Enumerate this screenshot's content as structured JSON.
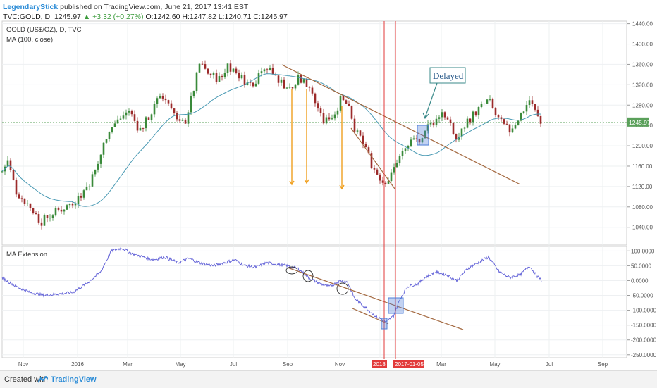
{
  "header": {
    "author": "LegendaryStick",
    "published": "published on TradingView.com, June 21, 2017 13:41 EST",
    "symbol": "TVC:GOLD, D",
    "last": "1245.97",
    "change": "▲ +3.32 (+0.27%)",
    "ohlc": "O:1242.60 H:1247.82 L:1240.71 C:1245.97"
  },
  "colors": {
    "candle_up": "#3a8a3a",
    "candle_down": "#9c2b2b",
    "ma_line": "#4a9ab4",
    "ext_line": "#5b5bd6",
    "trendline": "#a3683f",
    "arrow": "#f0a020",
    "vline": "#e23a3a",
    "box": "#4f7fd9",
    "callout": "#3a8a8a",
    "price_tag": "#5aa05a"
  },
  "footer": {
    "created_with": "Created with",
    "brand": "TradingView"
  },
  "chart_data": [
    {
      "type": "candlestick",
      "title": "GOLD (US$/OZ), D, TVC",
      "indicator": "MA (100, close)",
      "ylim": [
        1005,
        1445
      ],
      "yticks": [
        "1440.00",
        "1400.00",
        "1360.00",
        "1320.00",
        "1280.00",
        "1240.00",
        "1200.00",
        "1160.00",
        "1120.00",
        "1080.00",
        "1040.00"
      ],
      "last_price_label": "1245.97",
      "annotation": "Delayed",
      "price_anchors": [
        [
          0,
          1150
        ],
        [
          8,
          1170
        ],
        [
          20,
          1110
        ],
        [
          40,
          1080
        ],
        [
          55,
          1050
        ],
        [
          75,
          1070
        ],
        [
          90,
          1080
        ],
        [
          110,
          1100
        ],
        [
          125,
          1130
        ],
        [
          135,
          1160
        ],
        [
          150,
          1230
        ],
        [
          165,
          1250
        ],
        [
          180,
          1270
        ],
        [
          195,
          1230
        ],
        [
          210,
          1260
        ],
        [
          225,
          1300
        ],
        [
          240,
          1280
        ],
        [
          250,
          1240
        ],
        [
          260,
          1250
        ],
        [
          270,
          1300
        ],
        [
          280,
          1360
        ],
        [
          295,
          1340
        ],
        [
          310,
          1330
        ],
        [
          320,
          1360
        ],
        [
          335,
          1340
        ],
        [
          350,
          1320
        ],
        [
          360,
          1330
        ],
        [
          370,
          1360
        ],
        [
          385,
          1340
        ],
        [
          400,
          1320
        ],
        [
          410,
          1310
        ],
        [
          420,
          1330
        ],
        [
          435,
          1320
        ],
        [
          445,
          1290
        ],
        [
          455,
          1250
        ],
        [
          470,
          1260
        ],
        [
          480,
          1290
        ],
        [
          490,
          1280
        ],
        [
          500,
          1230
        ],
        [
          515,
          1200
        ],
        [
          525,
          1160
        ],
        [
          540,
          1130
        ],
        [
          550,
          1135
        ],
        [
          560,
          1170
        ],
        [
          575,
          1200
        ],
        [
          590,
          1210
        ],
        [
          605,
          1240
        ],
        [
          615,
          1250
        ],
        [
          625,
          1270
        ],
        [
          635,
          1240
        ],
        [
          645,
          1210
        ],
        [
          660,
          1250
        ],
        [
          675,
          1270
        ],
        [
          690,
          1290
        ],
        [
          700,
          1260
        ],
        [
          710,
          1240
        ],
        [
          720,
          1230
        ],
        [
          735,
          1260
        ],
        [
          748,
          1290
        ],
        [
          755,
          1270
        ],
        [
          765,
          1246
        ]
      ]
    },
    {
      "type": "line",
      "title": "MA Extension",
      "ylim": [
        -260,
        115
      ],
      "yticks": [
        "100.0000",
        "50.0000",
        "0.0000",
        "-50.0000",
        "-100.0000",
        "-150.0000",
        "-200.0000",
        "-250.0000"
      ],
      "ext_anchors": [
        [
          0,
          10
        ],
        [
          20,
          -20
        ],
        [
          40,
          -40
        ],
        [
          60,
          -50
        ],
        [
          80,
          -45
        ],
        [
          100,
          -40
        ],
        [
          120,
          -10
        ],
        [
          140,
          30
        ],
        [
          155,
          100
        ],
        [
          170,
          110
        ],
        [
          185,
          90
        ],
        [
          200,
          80
        ],
        [
          215,
          70
        ],
        [
          230,
          80
        ],
        [
          250,
          60
        ],
        [
          265,
          75
        ],
        [
          280,
          60
        ],
        [
          300,
          50
        ],
        [
          315,
          60
        ],
        [
          330,
          70
        ],
        [
          345,
          50
        ],
        [
          360,
          45
        ],
        [
          375,
          60
        ],
        [
          390,
          55
        ],
        [
          405,
          50
        ],
        [
          420,
          40
        ],
        [
          435,
          10
        ],
        [
          450,
          -10
        ],
        [
          465,
          -20
        ],
        [
          480,
          0
        ],
        [
          490,
          -5
        ],
        [
          500,
          -60
        ],
        [
          515,
          -90
        ],
        [
          530,
          -120
        ],
        [
          545,
          -140
        ],
        [
          555,
          -120
        ],
        [
          565,
          -60
        ],
        [
          575,
          -20
        ],
        [
          590,
          -10
        ],
        [
          600,
          10
        ],
        [
          615,
          30
        ],
        [
          630,
          20
        ],
        [
          645,
          0
        ],
        [
          660,
          40
        ],
        [
          675,
          60
        ],
        [
          690,
          80
        ],
        [
          705,
          30
        ],
        [
          720,
          10
        ],
        [
          735,
          20
        ],
        [
          748,
          50
        ],
        [
          757,
          20
        ],
        [
          765,
          0
        ]
      ]
    },
    {
      "type": "axis",
      "x_ticks": [
        "Nov",
        "2016",
        "Mar",
        "May",
        "Jul",
        "Sep",
        "Nov",
        "2018",
        "2017-01-05",
        "Mar",
        "May",
        "Jul",
        "Sep"
      ]
    }
  ]
}
